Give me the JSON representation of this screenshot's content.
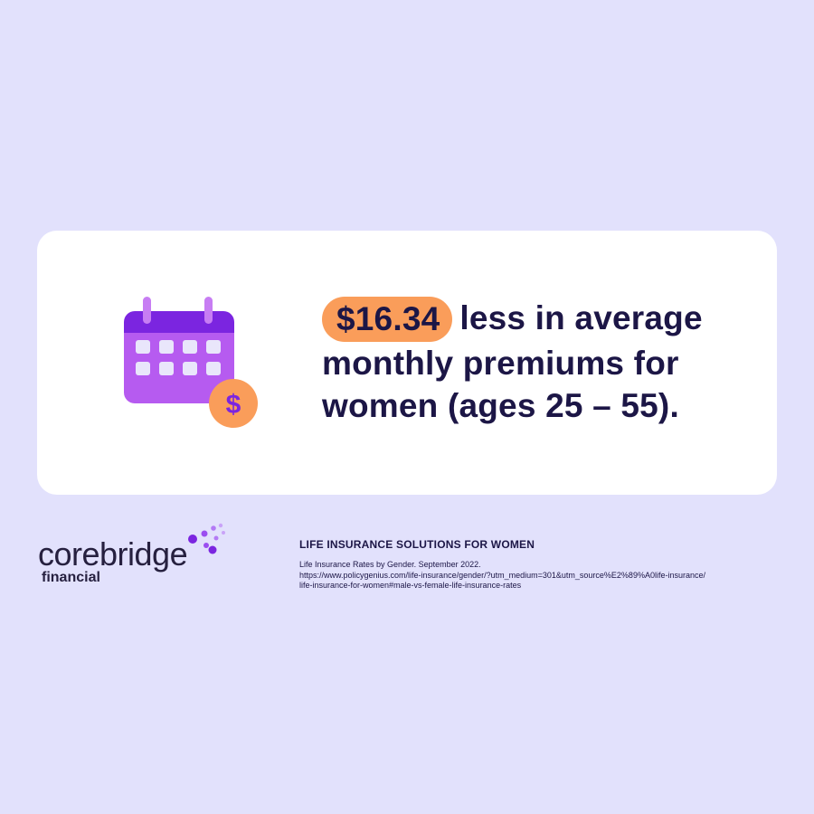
{
  "stat": {
    "amount": "$16.34",
    "line1_rest": "less in average",
    "line2": "monthly premiums for",
    "line3": "women (ages 25 – 55)."
  },
  "icons": {
    "calendar": "calendar-icon",
    "coin": "dollar-coin-icon",
    "coin_symbol": "$"
  },
  "brand": {
    "name": "corebridge",
    "sub": "financial"
  },
  "footer": {
    "heading": "LIFE INSURANCE SOLUTIONS FOR WOMEN",
    "source_line1": "Life Insurance Rates by Gender. September 2022.",
    "source_line2": "https://www.policygenius.com/life-insurance/gender/?utm_medium=301&utm_source%E2%89%A0life-insurance/",
    "source_line3": "life-insurance-for-women#male-vs-female-life-insurance-rates"
  },
  "colors": {
    "background": "#e2e1fc",
    "card": "#ffffff",
    "accent_orange": "#fa9d5a",
    "calendar_purple": "#b65bf0",
    "calendar_header": "#7b25e0",
    "text_dark": "#1c1646"
  }
}
